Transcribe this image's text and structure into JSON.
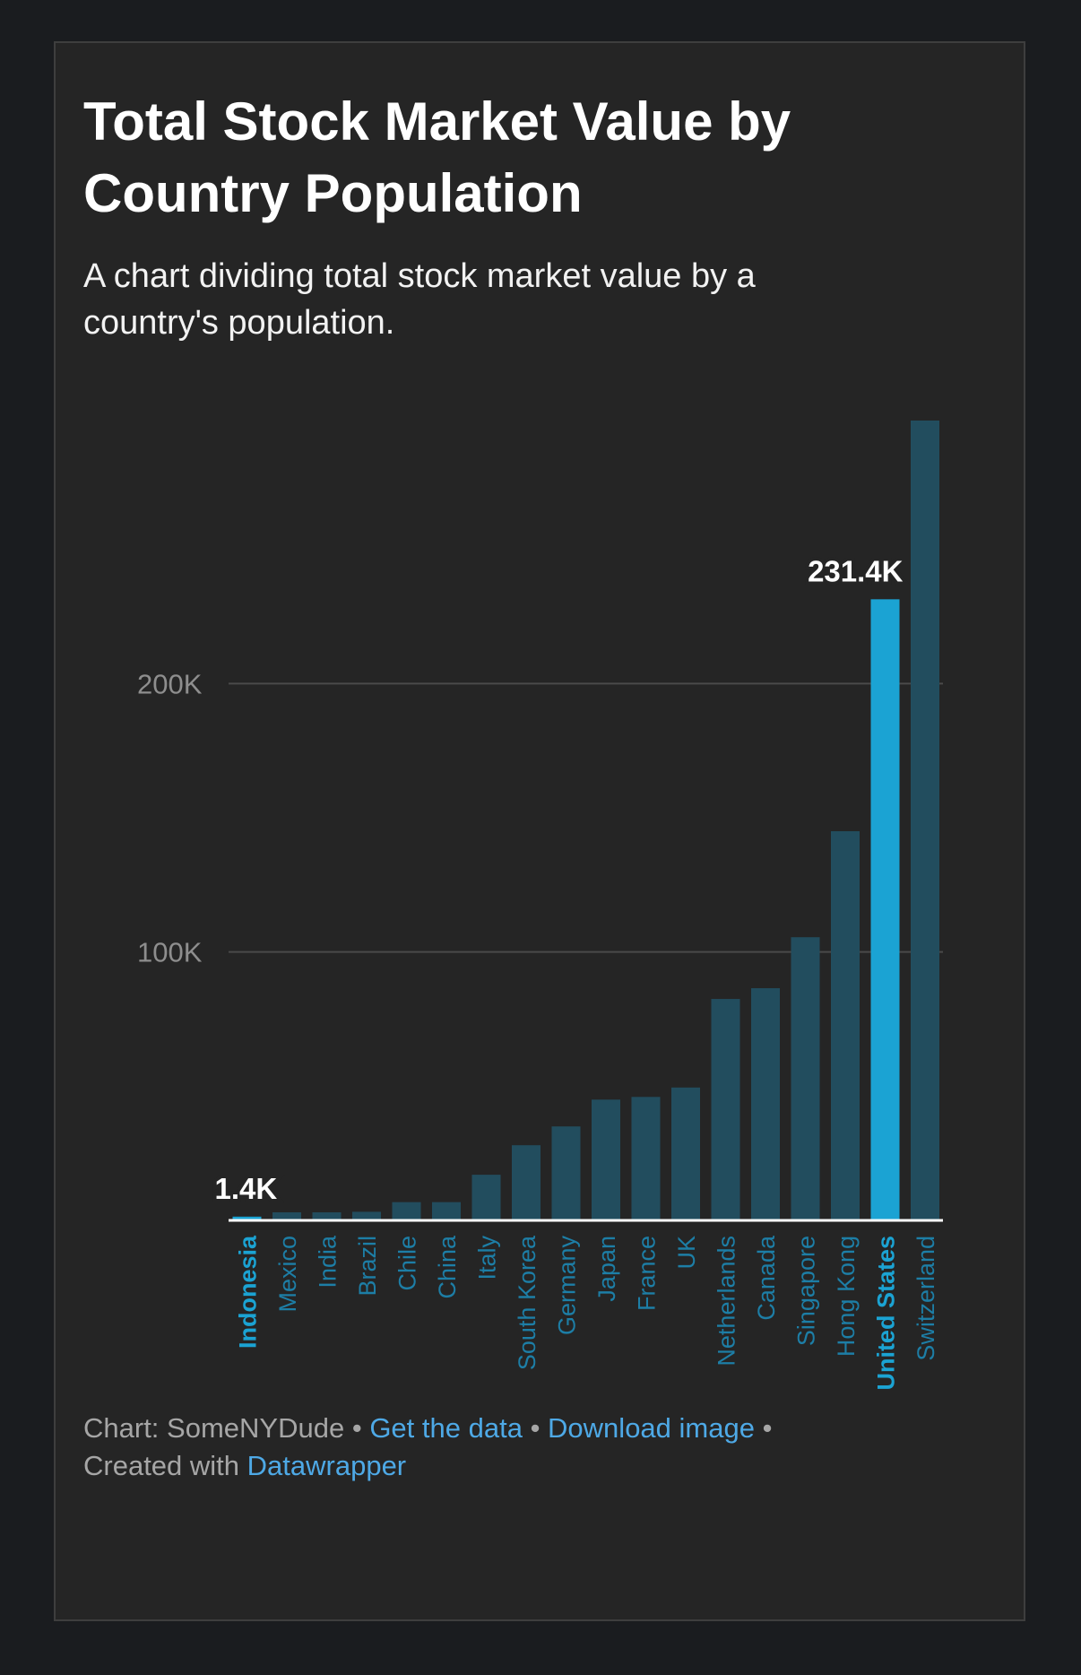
{
  "header": {
    "title": "Total Stock Market Value by Country Population",
    "subtitle": "A chart dividing total stock market value by a country's population."
  },
  "footer": {
    "source_prefix": "Chart:",
    "source_name": "SomeNYDude",
    "separator": "•",
    "get_data_label": "Get the data",
    "download_label": "Download image",
    "created_prefix": "Created with",
    "created_tool": "Datawrapper"
  },
  "colors": {
    "background": "#1a1c1f",
    "card": "#252525",
    "bar": "#224d5e",
    "highlight": "#1ba3d3",
    "gridline": "#4a4a4a",
    "axis_label": "#8e8e8e",
    "category_label": "#1d7ea6",
    "baseline": "#ffffff"
  },
  "chart_data": {
    "type": "bar",
    "title": "Total Stock Market Value by Country Population",
    "xlabel": "",
    "ylabel": "",
    "ylim": [
      0,
      300000
    ],
    "yticks": [
      {
        "value": 100000,
        "label": "100K"
      },
      {
        "value": 200000,
        "label": "200K"
      }
    ],
    "grid": true,
    "categories": [
      "Indonesia",
      "Mexico",
      "India",
      "Brazil",
      "Chile",
      "China",
      "Italy",
      "South Korea",
      "Germany",
      "Japan",
      "France",
      "UK",
      "Netherlands",
      "Canada",
      "Singapore",
      "Hong Kong",
      "United States",
      "Switzerland"
    ],
    "values": [
      1400,
      3000,
      3000,
      3200,
      6800,
      6800,
      17000,
      28000,
      35000,
      45000,
      46000,
      49500,
      82500,
      86500,
      105500,
      145000,
      231400,
      298000
    ],
    "highlighted": [
      "Indonesia",
      "United States"
    ],
    "data_labels": [
      {
        "category": "Indonesia",
        "text": "1.4K"
      },
      {
        "category": "United States",
        "text": "231.4K"
      }
    ]
  }
}
